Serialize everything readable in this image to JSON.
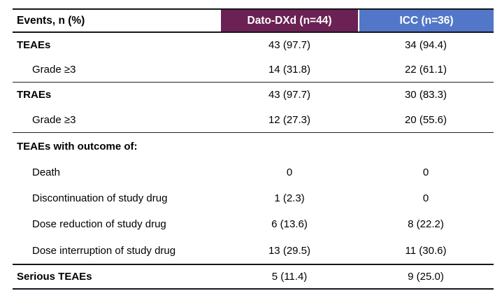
{
  "table": {
    "header": {
      "events": "Events, n (%)",
      "dato_dxd": "Dato-DXd (n=44)",
      "icc": "ICC (n=36)"
    },
    "rows": [
      {
        "label": "TEAEs",
        "dato_dxd": "43 (97.7)",
        "icc": "34 (94.4)"
      },
      {
        "label": "Grade ≥3",
        "dato_dxd": "14 (31.8)",
        "icc": "22 (61.1)"
      },
      {
        "label": "TRAEs",
        "dato_dxd": "43 (97.7)",
        "icc": "30 (83.3)"
      },
      {
        "label": "Grade ≥3",
        "dato_dxd": "12 (27.3)",
        "icc": "20 (55.6)"
      },
      {
        "label": "TEAEs with outcome of:",
        "dato_dxd": "",
        "icc": ""
      },
      {
        "label": "Death",
        "dato_dxd": "0",
        "icc": "0"
      },
      {
        "label": "Discontinuation of study drug",
        "dato_dxd": "1 (2.3)",
        "icc": "0"
      },
      {
        "label": "Dose reduction of study drug",
        "dato_dxd": "6 (13.6)",
        "icc": "8 (22.2)"
      },
      {
        "label": "Dose interruption of study drug",
        "dato_dxd": "13 (29.5)",
        "icc": "11 (30.6)"
      },
      {
        "label": "Serious TEAEs",
        "dato_dxd": "5 (11.4)",
        "icc": "9 (25.0)"
      }
    ]
  },
  "colors": {
    "dato_dxd_header_bg": "#6B2154",
    "icc_header_bg": "#5377C8",
    "header_text": "#FFFFFF",
    "body_text": "#000000",
    "rule": "#15151E"
  },
  "chart_data": {
    "type": "table",
    "columns": [
      "Events, n (%)",
      "Dato-DXd (n=44)",
      "ICC (n=36)"
    ],
    "rows": [
      [
        "TEAEs",
        "43 (97.7)",
        "34 (94.4)"
      ],
      [
        "Grade ≥3",
        "14 (31.8)",
        "22 (61.1)"
      ],
      [
        "TRAEs",
        "43 (97.7)",
        "30 (83.3)"
      ],
      [
        "Grade ≥3",
        "12 (27.3)",
        "20 (55.6)"
      ],
      [
        "TEAEs with outcome of:",
        "",
        ""
      ],
      [
        "Death",
        "0",
        "0"
      ],
      [
        "Discontinuation of study drug",
        "1 (2.3)",
        "0"
      ],
      [
        "Dose reduction of study drug",
        "6 (13.6)",
        "8 (22.2)"
      ],
      [
        "Dose interruption of study drug",
        "13 (29.5)",
        "11 (30.6)"
      ],
      [
        "Serious TEAEs",
        "5 (11.4)",
        "9 (25.0)"
      ]
    ]
  }
}
